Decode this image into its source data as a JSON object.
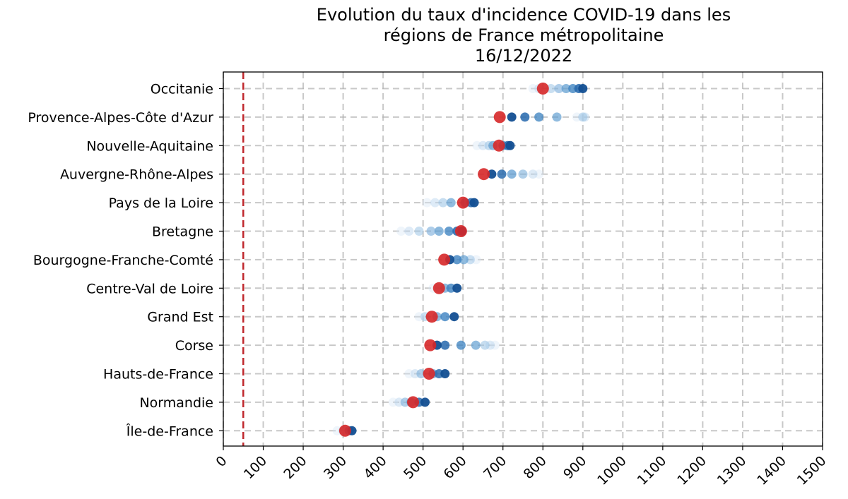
{
  "chart_data": {
    "type": "scatter",
    "title_lines": [
      "Evolution du taux d'incidence COVID-19 dans les",
      "régions de France métropolitaine",
      "16/12/2022"
    ],
    "xlabel": "",
    "ylabel": "",
    "xlim": [
      0,
      1500
    ],
    "x_ticks": [
      0,
      100,
      200,
      300,
      400,
      500,
      600,
      700,
      800,
      900,
      1000,
      1100,
      1200,
      1300,
      1400,
      1500
    ],
    "grid": true,
    "threshold_line": {
      "x": 50,
      "style": "dashed",
      "color": "#c0282d"
    },
    "colors": {
      "current": "#d62728",
      "history": "#1f5fa8",
      "threshold": "#c0282d"
    },
    "regions": [
      {
        "name": "Occitanie",
        "history": [
          775,
          790,
          820,
          840,
          858,
          875,
          890,
          900
        ],
        "current": 800
      },
      {
        "name": "Provence-Alpes-Côte d'Azur",
        "history": [
          885,
          905,
          900,
          835,
          790,
          755,
          722
        ],
        "current": 692
      },
      {
        "name": "Nouvelle-Aquitaine",
        "history": [
          635,
          650,
          665,
          675,
          700,
          712,
          718
        ],
        "current": 690
      },
      {
        "name": "Auvergne-Rhône-Alpes",
        "history": [
          790,
          775,
          750,
          722,
          697,
          672
        ],
        "current": 652
      },
      {
        "name": "Pays de la Loire",
        "history": [
          510,
          530,
          550,
          570,
          605,
          620,
          628
        ],
        "current": 600
      },
      {
        "name": "Bretagne",
        "history": [
          445,
          465,
          490,
          520,
          540,
          565,
          585,
          598
        ],
        "current": 595
      },
      {
        "name": "Bourgogne-Franche-Comté",
        "history": [
          633,
          618,
          602,
          585,
          567
        ],
        "current": 553
      },
      {
        "name": "Centre-Val de Loire",
        "history": [
          525,
          540,
          555,
          570,
          585
        ],
        "current": 540
      },
      {
        "name": "Grand Est",
        "history": [
          490,
          505,
          535,
          555,
          578
        ],
        "current": 522
      },
      {
        "name": "Corse",
        "history": [
          680,
          668,
          655,
          632,
          595,
          555,
          535
        ],
        "current": 518
      },
      {
        "name": "Hauts-de-France",
        "history": [
          465,
          480,
          495,
          525,
          540,
          555
        ],
        "current": 515
      },
      {
        "name": "Normandie",
        "history": [
          425,
          440,
          455,
          470,
          490,
          505
        ],
        "current": 475
      },
      {
        "name": "Île-de-France",
        "history": [
          285,
          300,
          315,
          322
        ],
        "current": 305
      }
    ]
  }
}
